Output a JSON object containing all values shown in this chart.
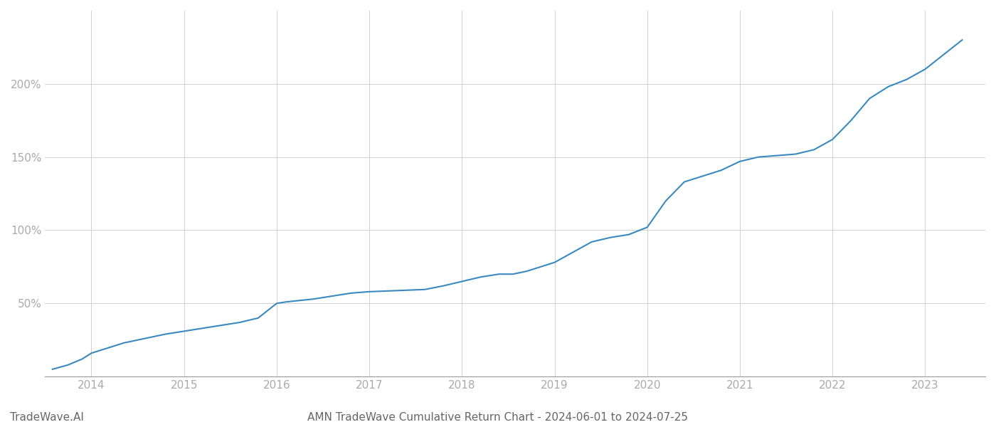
{
  "title": "AMN TradeWave Cumulative Return Chart - 2024-06-01 to 2024-07-25",
  "watermark": "TradeWave.AI",
  "line_color": "#3a8abf",
  "background_color": "#ffffff",
  "grid_color": "#cccccc",
  "x_years": [
    2014,
    2015,
    2016,
    2017,
    2018,
    2019,
    2020,
    2021,
    2022,
    2023
  ],
  "x_values": [
    2013.58,
    2013.75,
    2013.9,
    2014.0,
    2014.1,
    2014.2,
    2014.35,
    2014.5,
    2014.65,
    2014.8,
    2015.0,
    2015.2,
    2015.4,
    2015.6,
    2015.8,
    2016.0,
    2016.1,
    2016.25,
    2016.4,
    2016.6,
    2016.8,
    2017.0,
    2017.2,
    2017.4,
    2017.6,
    2017.8,
    2018.0,
    2018.2,
    2018.4,
    2018.55,
    2018.7,
    2019.0,
    2019.2,
    2019.4,
    2019.6,
    2019.8,
    2020.0,
    2020.2,
    2020.4,
    2020.6,
    2020.8,
    2021.0,
    2021.2,
    2021.4,
    2021.6,
    2021.8,
    2022.0,
    2022.2,
    2022.4,
    2022.6,
    2022.8,
    2023.0,
    2023.2,
    2023.4
  ],
  "y_values": [
    5,
    8,
    12,
    16,
    18,
    20,
    23,
    25,
    27,
    29,
    31,
    33,
    35,
    37,
    40,
    50,
    51,
    52,
    53,
    55,
    57,
    58,
    58.5,
    59,
    59.5,
    62,
    65,
    68,
    70,
    70,
    72,
    78,
    85,
    92,
    95,
    97,
    102,
    120,
    133,
    137,
    141,
    147,
    150,
    151,
    152,
    155,
    162,
    175,
    190,
    198,
    203,
    210,
    220,
    230
  ],
  "yticks": [
    50,
    100,
    150,
    200
  ],
  "ytick_labels": [
    "50%",
    "100%",
    "150%",
    "200%"
  ],
  "ylim": [
    0,
    250
  ],
  "xlim": [
    2013.5,
    2023.65
  ],
  "title_fontsize": 11,
  "watermark_fontsize": 11,
  "tick_fontsize": 11,
  "tick_color": "#aaaaaa",
  "axis_color": "#999999"
}
